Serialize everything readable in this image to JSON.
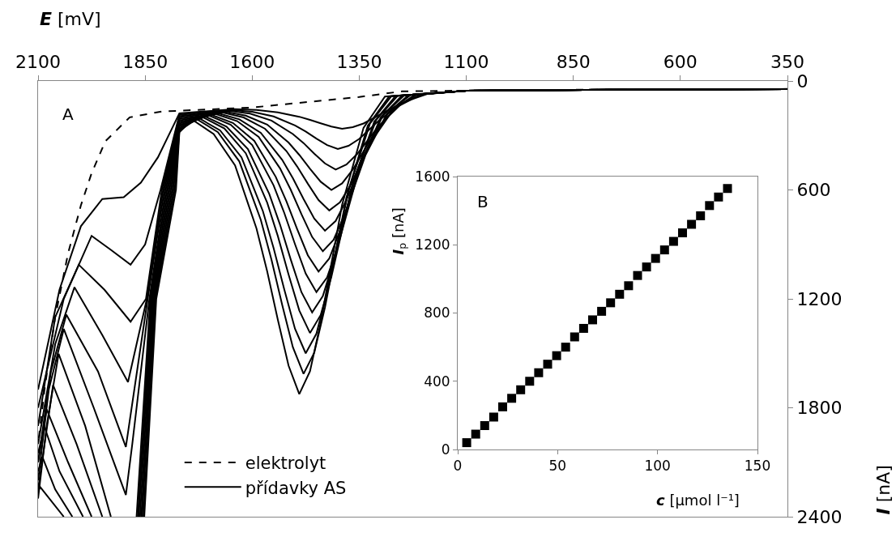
{
  "chart_data": [
    {
      "type": "line",
      "xlabel": "E [mV]",
      "ylabel": "I [nA]",
      "xlim": [
        2100,
        350
      ],
      "xticks": [
        2100,
        1850,
        1600,
        1350,
        1100,
        850,
        600,
        350
      ],
      "ylim": [
        2400,
        0
      ],
      "yticks": [
        0,
        600,
        1200,
        1800,
        2400
      ],
      "grid": false,
      "legend": "bottom left",
      "annotations": [
        "A"
      ],
      "series": [
        {
          "name": "elektrolyt",
          "color": "#000000",
          "line_style": "dashed",
          "x": [
            350,
            700,
            1100,
            1250,
            1350,
            1600,
            1811,
            1886,
            1943,
            1975,
            2000,
            2030,
            2060,
            2085,
            2100
          ],
          "values": [
            44,
            46,
            53,
            57,
            88,
            146,
            168,
            200,
            332,
            508,
            685,
            950,
            1300,
            1700,
            2000
          ]
        },
        {
          "name": "přídavky AS",
          "color": "#000000",
          "line_style": "solid",
          "x": [
            350,
            500,
            700,
            900,
            1100,
            1190,
            1240,
            1290,
            1315,
            1340,
            1365,
            1390,
            1415,
            1440,
            1465,
            1490,
            1540,
            1590,
            1640,
            1770,
            1820,
            1860,
            1900,
            1950,
            2000,
            2050,
            2100,
            null,
            350,
            500,
            700,
            900,
            1100,
            1200,
            1250,
            1300,
            1325,
            1350,
            1375,
            1400,
            1425,
            1450,
            1475,
            1500,
            1550,
            1600,
            1650,
            1770,
            1814,
            1850,
            1884,
            1930,
            1975,
            2040,
            2100,
            null,
            350,
            500,
            700,
            900,
            1100,
            1205,
            1255,
            1305,
            1330,
            1355,
            1380,
            1405,
            1430,
            1455,
            1480,
            1505,
            1555,
            1605,
            1655,
            1770,
            1811,
            1848,
            1884,
            1945,
            2005,
            2060,
            2100,
            null,
            350,
            500,
            700,
            900,
            1100,
            1215,
            1265,
            1315,
            1340,
            1365,
            1390,
            1415,
            1440,
            1465,
            1490,
            1515,
            1565,
            1615,
            1665,
            1770,
            1808,
            1846,
            1890,
            1950,
            2015,
            2060,
            2100,
            null,
            350,
            500,
            700,
            900,
            1100,
            1220,
            1270,
            1320,
            1345,
            1370,
            1395,
            1420,
            1445,
            1470,
            1495,
            1520,
            1570,
            1620,
            1670,
            1770,
            1805,
            1844,
            1895,
            1960,
            2034,
            2070,
            2100,
            null,
            350,
            500,
            700,
            900,
            1100,
            1230,
            1280,
            1330,
            1355,
            1380,
            1405,
            1430,
            1455,
            1480,
            1505,
            1530,
            1580,
            1630,
            1680,
            1770,
            1802,
            1840,
            1880,
            1895,
            1970,
            2040,
            2075,
            2100,
            null,
            350,
            500,
            700,
            900,
            1100,
            1235,
            1285,
            1335,
            1360,
            1385,
            1410,
            1435,
            1460,
            1485,
            1510,
            1535,
            1585,
            1635,
            1685,
            1770,
            1799,
            1838,
            1870,
            null,
            1930,
            1990,
            2052,
            2080,
            2100,
            null,
            350,
            500,
            700,
            900,
            1100,
            1245,
            1295,
            1345,
            1370,
            1395,
            1420,
            1445,
            1470,
            1495,
            1520,
            1545,
            1595,
            1645,
            1695,
            1770,
            1796,
            1836,
            1867,
            null,
            1950,
            2010,
            2065,
            2100,
            null,
            350,
            500,
            700,
            900,
            1100,
            1250,
            1300,
            1350,
            1375,
            1400,
            1425,
            1450,
            1475,
            1500,
            1525,
            1550,
            1600,
            1650,
            1700,
            1770,
            1793,
            1834,
            1865,
            null,
            1975,
            2030,
            2080,
            2100,
            null,
            350,
            500,
            700,
            900,
            1100,
            1260,
            1310,
            1360,
            1385,
            1410,
            1435,
            1460,
            1485,
            1510,
            1535,
            1560,
            1610,
            1660,
            1710,
            1770,
            1790,
            1832,
            1862,
            null,
            1995,
            2050,
            2085,
            2100,
            null,
            350,
            500,
            700,
            900,
            1100,
            1265,
            1315,
            1365,
            1390,
            1415,
            1440,
            1465,
            1490,
            1515,
            1540,
            1565,
            1615,
            1665,
            1715,
            1770,
            1787,
            1830,
            1859,
            null,
            2020,
            2060,
            2090,
            2100,
            null,
            350,
            500,
            700,
            900,
            1100,
            1275,
            1325,
            1375,
            1400,
            1425,
            1450,
            1475,
            1500,
            1525,
            1550,
            1575,
            1625,
            1675,
            1725,
            1770,
            1784,
            1828,
            1857,
            null,
            2040,
            2095,
            2100,
            null,
            350,
            500,
            700,
            900,
            1100,
            1280,
            1330,
            1380,
            1405,
            1430,
            1455,
            1480,
            1505,
            1530,
            1555,
            1580,
            1630,
            1680,
            1730,
            1770,
            1781,
            1826,
            1854,
            null,
            350,
            500,
            700,
            900,
            1100,
            1290,
            1340,
            1390,
            1415,
            1440,
            1465,
            1490,
            1515,
            1540,
            1565,
            1590,
            1640,
            1690,
            1740,
            1770,
            1778,
            1824,
            1852
          ],
          "values": [
            45,
            46,
            48,
            50,
            53,
            71,
            111,
            169,
            202,
            234,
            254,
            263,
            251,
            233,
            214,
            197,
            173,
            160,
            155,
            178,
            420,
            560,
            640,
            650,
            800,
            1150,
            1700,
            null,
            45,
            46,
            48,
            50,
            53,
            72,
            123,
            209,
            264,
            319,
            357,
            375,
            353,
            317,
            278,
            245,
            195,
            170,
            159,
            186,
            600,
            900,
            1012,
            930,
            853,
            1200,
            1800,
            null,
            45,
            46,
            48,
            50,
            53,
            73,
            134,
            248,
            326,
            403,
            460,
            488,
            454,
            400,
            342,
            292,
            218,
            180,
            164,
            194,
            600,
            1200,
            1326,
            1150,
            1012,
            1300,
            1900,
            null,
            45,
            46,
            48,
            50,
            53,
            75,
            145,
            288,
            388,
            488,
            564,
            600,
            555,
            483,
            407,
            339,
            240,
            191,
            168,
            202,
            600,
            1200,
            1658,
            1400,
            1136,
            1450,
            2000,
            null,
            45,
            46,
            48,
            50,
            53,
            76,
            156,
            327,
            449,
            572,
            668,
            713,
            656,
            566,
            471,
            386,
            263,
            201,
            173,
            210,
            600,
            1200,
            2016,
            1600,
            1287,
            1600,
            2100,
            null,
            45,
            46,
            48,
            50,
            53,
            77,
            168,
            366,
            511,
            656,
            771,
            825,
            758,
            650,
            535,
            434,
            285,
            211,
            177,
            218,
            600,
            1200,
            2000,
            2280,
            1800,
            1366,
            1700,
            2200,
            null,
            45,
            46,
            48,
            50,
            53,
            78,
            179,
            406,
            573,
            741,
            875,
            938,
            859,
            733,
            599,
            481,
            308,
            221,
            182,
            226,
            600,
            1200,
            2400,
            null,
            2400,
            1900,
            1503,
            1900,
            2300,
            null,
            45,
            46,
            48,
            50,
            53,
            79,
            190,
            445,
            635,
            825,
            978,
            1050,
            960,
            816,
            663,
            528,
            330,
            231,
            186,
            234,
            600,
            1200,
            2400,
            null,
            2400,
            2000,
            1675,
            2250,
            null,
            45,
            46,
            48,
            50,
            53,
            80,
            201,
            484,
            697,
            909,
            1082,
            1163,
            1061,
            899,
            727,
            575,
            353,
            241,
            191,
            242,
            600,
            1200,
            2400,
            null,
            2400,
            2100,
            1808,
            2100,
            null,
            45,
            46,
            48,
            50,
            53,
            81,
            213,
            524,
            759,
            994,
            1185,
            1275,
            1163,
            983,
            791,
            623,
            375,
            251,
            195,
            250,
            600,
            1200,
            2400,
            null,
            2400,
            2150,
            1905,
            2050,
            null,
            45,
            46,
            48,
            50,
            53,
            82,
            224,
            563,
            821,
            1078,
            1289,
            1388,
            1264,
            1066,
            855,
            670,
            398,
            261,
            200,
            258,
            600,
            1200,
            2400,
            null,
            2400,
            2250,
            2070,
            2150,
            null,
            45,
            46,
            48,
            50,
            53,
            84,
            235,
            603,
            883,
            1163,
            1392,
            1500,
            1365,
            1149,
            920,
            717,
            420,
            272,
            204,
            266,
            600,
            1200,
            2400,
            null,
            2400,
            2237,
            2260,
            null,
            45,
            46,
            48,
            50,
            53,
            85,
            246,
            642,
            944,
            1247,
            1496,
            1613,
            1466,
            1232,
            984,
            764,
            443,
            282,
            209,
            274,
            600,
            1200,
            2400,
            null,
            45,
            46,
            48,
            50,
            53,
            86,
            258,
            681,
            1006,
            1331,
            1599,
            1725,
            1568,
            1316,
            1048,
            812,
            465,
            292,
            213,
            282,
            600,
            1200,
            2400
          ]
        }
      ]
    },
    {
      "type": "scatter",
      "xlabel": "c [μmol l⁻¹]",
      "ylabel": "I$_{p}$ [nA]",
      "xlim": [
        0,
        150
      ],
      "xticks": [
        0,
        50,
        100,
        150
      ],
      "ylim": [
        0,
        1600
      ],
      "yticks": [
        0,
        400,
        800,
        1200,
        1600
      ],
      "grid": false,
      "marker": "square",
      "annotations": [
        "B"
      ],
      "series": [
        {
          "color": "#000000",
          "x": [
            4.5,
            9,
            13.5,
            18,
            22.5,
            27,
            31.5,
            36,
            40.5,
            45,
            49.5,
            54,
            58.5,
            63,
            67.5,
            72,
            76.5,
            81,
            85.5,
            90,
            94.5,
            99,
            103.5,
            108,
            112.5,
            117,
            121.5,
            126,
            130.5,
            135
          ],
          "values": [
            40,
            90,
            140,
            190,
            250,
            300,
            350,
            400,
            450,
            500,
            550,
            600,
            660,
            710,
            760,
            810,
            860,
            910,
            960,
            1020,
            1070,
            1120,
            1170,
            1220,
            1270,
            1320,
            1370,
            1430,
            1480,
            1530
          ]
        }
      ]
    }
  ]
}
